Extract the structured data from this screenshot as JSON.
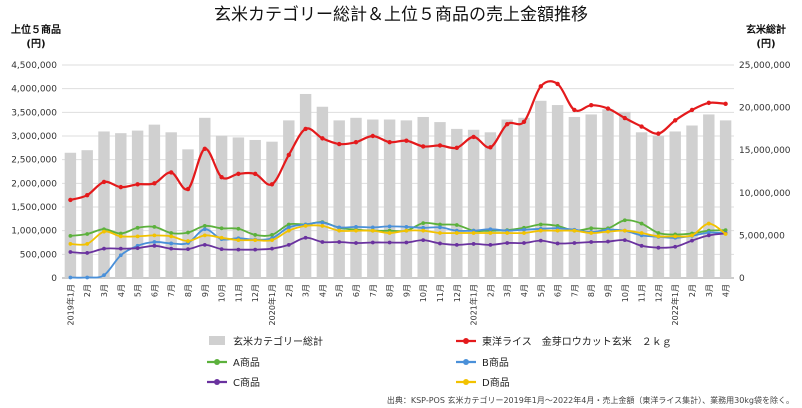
{
  "chart_data": {
    "type": "bar",
    "title": "玄米カテゴリー総計＆上位５商品の売上金額推移",
    "left_axis_title_line1": "上位５商品",
    "left_axis_title_line2": "(円)",
    "right_axis_title_line1": "玄米総計",
    "right_axis_title_line2": "(円)",
    "left_ylim": [
      0,
      4500000
    ],
    "left_ticks": [
      "0",
      "500,000",
      "1,000,000",
      "1,500,000",
      "2,000,000",
      "2,500,000",
      "3,000,000",
      "3,500,000",
      "4,000,000",
      "4,500,000"
    ],
    "right_ylim": [
      0,
      25000000
    ],
    "right_ticks": [
      "0",
      "5,000,000",
      "10,000,000",
      "15,000,000",
      "20,000,000",
      "25,000,000"
    ],
    "categories": [
      "2019年1月",
      "2月",
      "3月",
      "4月",
      "5月",
      "6月",
      "7月",
      "8月",
      "9月",
      "10月",
      "11月",
      "12月",
      "2020年1月",
      "2月",
      "3月",
      "4月",
      "5月",
      "6月",
      "7月",
      "8月",
      "9月",
      "10月",
      "11月",
      "12月",
      "2021年1月",
      "2月",
      "3月",
      "4月",
      "5月",
      "6月",
      "7月",
      "8月",
      "9月",
      "10月",
      "11月",
      "12月",
      "2022年1月",
      "2月",
      "3月",
      "4月"
    ],
    "grid": true,
    "legend_position": "bottom",
    "series": [
      {
        "name": "玄米カテゴリー総計",
        "axis": "right",
        "kind": "bar",
        "color": "#d0d0d0",
        "values": [
          14700000,
          15000000,
          17200000,
          17000000,
          17300000,
          18000000,
          17100000,
          15100000,
          18800000,
          16700000,
          16500000,
          16200000,
          16000000,
          18500000,
          21600000,
          20100000,
          18500000,
          18800000,
          18600000,
          18600000,
          18500000,
          18900000,
          18300000,
          17500000,
          17400000,
          17100000,
          18600000,
          18800000,
          20800000,
          20300000,
          18900000,
          19200000,
          19800000,
          19500000,
          17100000,
          16700000,
          17200000,
          17900000,
          19200000,
          18500000
        ]
      },
      {
        "name": "東洋ライス　金芽ロウカット玄米　２ｋｇ",
        "axis": "left",
        "kind": "line",
        "color": "#e41a1c",
        "values": [
          1650000,
          1750000,
          2030000,
          1920000,
          1980000,
          2000000,
          2230000,
          1880000,
          2730000,
          2130000,
          2200000,
          2200000,
          1980000,
          2600000,
          3150000,
          2950000,
          2830000,
          2870000,
          3000000,
          2870000,
          2900000,
          2780000,
          2800000,
          2750000,
          2980000,
          2760000,
          3250000,
          3300000,
          4050000,
          4100000,
          3550000,
          3650000,
          3580000,
          3380000,
          3200000,
          3050000,
          3330000,
          3550000,
          3700000,
          3680000
        ]
      },
      {
        "name": "A商品",
        "axis": "left",
        "kind": "line",
        "color": "#5cb13c",
        "values": [
          890000,
          930000,
          1030000,
          940000,
          1060000,
          1080000,
          950000,
          960000,
          1100000,
          1050000,
          1040000,
          910000,
          910000,
          1130000,
          1130000,
          1180000,
          1060000,
          1020000,
          1000000,
          1000000,
          1000000,
          1160000,
          1130000,
          1120000,
          1000000,
          1000000,
          1010000,
          1060000,
          1130000,
          1100000,
          1000000,
          1050000,
          1050000,
          1220000,
          1150000,
          950000,
          920000,
          940000,
          1000000,
          1010000
        ]
      },
      {
        "name": "B商品",
        "axis": "left",
        "kind": "line",
        "color": "#4a90d9",
        "values": [
          10000,
          10000,
          60000,
          480000,
          680000,
          760000,
          730000,
          740000,
          1030000,
          820000,
          840000,
          810000,
          840000,
          1070000,
          1130000,
          1170000,
          1070000,
          1080000,
          1070000,
          1090000,
          1080000,
          1060000,
          1070000,
          1000000,
          1000000,
          1030000,
          1000000,
          1020000,
          1040000,
          1050000,
          1020000,
          970000,
          1020000,
          1000000,
          900000,
          870000,
          850000,
          890000,
          960000,
          950000
        ]
      },
      {
        "name": "C商品",
        "axis": "left",
        "kind": "line",
        "color": "#6a329f",
        "values": [
          550000,
          530000,
          620000,
          620000,
          630000,
          680000,
          620000,
          610000,
          700000,
          610000,
          600000,
          600000,
          620000,
          700000,
          850000,
          760000,
          760000,
          740000,
          750000,
          750000,
          750000,
          800000,
          730000,
          700000,
          720000,
          700000,
          740000,
          740000,
          790000,
          730000,
          740000,
          760000,
          770000,
          800000,
          680000,
          640000,
          660000,
          790000,
          900000,
          940000
        ]
      },
      {
        "name": "D商品",
        "axis": "left",
        "kind": "line",
        "color": "#f2c200",
        "values": [
          720000,
          720000,
          980000,
          880000,
          880000,
          900000,
          880000,
          780000,
          900000,
          850000,
          800000,
          800000,
          800000,
          1000000,
          1100000,
          1100000,
          1000000,
          1000000,
          1000000,
          950000,
          1000000,
          1000000,
          950000,
          950000,
          950000,
          950000,
          950000,
          950000,
          1000000,
          1000000,
          1000000,
          950000,
          980000,
          1000000,
          950000,
          880000,
          880000,
          900000,
          1150000,
          930000
        ]
      }
    ],
    "source_note": "出典：KSP-POS 玄米カテゴリー2019年1月～2022年4月・売上金額（東洋ライス集計）、業務用30kg袋を除く。"
  }
}
